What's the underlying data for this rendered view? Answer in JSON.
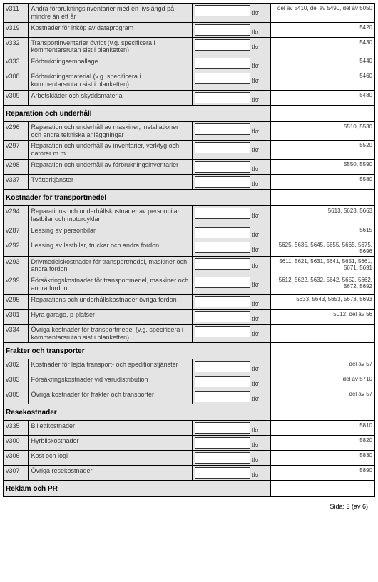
{
  "unit": "tkr",
  "sections": [
    {
      "id": "top",
      "heading": null,
      "rows": [
        {
          "name": "row-v311",
          "code": "v311",
          "label": "Andra förbrukningsinventarier med en livslängd på mindre än ett år",
          "note": "del av 5410, del av 5490, del av 5050",
          "value": ""
        },
        {
          "name": "row-v319",
          "code": "v319",
          "label": "Kostnader för inköp av dataprogram",
          "note": "5420",
          "value": ""
        },
        {
          "name": "row-v332",
          "code": "v332",
          "label": "Transportinventarier övrigt (v.g. specificera i kommentarsrutan sist i blanketten)",
          "note": "5430",
          "value": ""
        },
        {
          "name": "row-v333",
          "code": "v333",
          "label": "Förbrukningsemballage",
          "note": "5440",
          "value": ""
        },
        {
          "name": "row-v308",
          "code": "v308",
          "label": "Förbrukningsmaterial (v.g. specificera i kommentarsrutan sist i blanketten)",
          "note": "5460",
          "value": ""
        },
        {
          "name": "row-v309",
          "code": "v309",
          "label": "Arbetskläder och skyddsmaterial",
          "note": "5480",
          "value": ""
        }
      ]
    },
    {
      "id": "reparation",
      "heading": "Reparation och underhåll",
      "rows": [
        {
          "name": "row-v296",
          "code": "v296",
          "label": "Reparation och underhåll av maskiner, installationer och andra tekniska anläggningar",
          "note": "5510, 5530",
          "value": ""
        },
        {
          "name": "row-v297",
          "code": "v297",
          "label": "Reparation och underhåll av inventarier, verktyg och datorer m.m.",
          "note": "5520",
          "value": ""
        },
        {
          "name": "row-v298",
          "code": "v298",
          "label": "Reparation och underhåll av förbrukningsinventarier",
          "note": "5550, 5590",
          "value": ""
        },
        {
          "name": "row-v337",
          "code": "v337",
          "label": "Tvätteritjänster",
          "note": "5580",
          "value": ""
        }
      ]
    },
    {
      "id": "transportmedel",
      "heading": "Kostnader för transportmedel",
      "rows": [
        {
          "name": "row-v294",
          "code": "v294",
          "label": "Reparations och underhållskostnader av personbilar, lastbilar och motorcyklar",
          "note": "5613, 5623, 5663",
          "value": ""
        },
        {
          "name": "row-v287",
          "code": "v287",
          "label": "Leasing av personbilar",
          "note": "5615",
          "value": ""
        },
        {
          "name": "row-v292",
          "code": "v292",
          "label": "Leasing av lastbilar, truckar och andra fordon",
          "note": "5625, 5635, 5645, 5655, 5665, 5675, 5696",
          "value": ""
        },
        {
          "name": "row-v293",
          "code": "v293",
          "label": "Drivmedelskostnader för transportmedel, maskiner och andra fordon",
          "note": "5611, 5621, 5631, 5641, 5651, 5661, 5671, 5691",
          "value": ""
        },
        {
          "name": "row-v299",
          "code": "v299",
          "label": "Försäkringskostnader för transportmedel, maskiner och andra fordon",
          "note": "5612, 5622, 5632, 5642, 5652, 5662, 5672, 5692",
          "value": ""
        },
        {
          "name": "row-v295",
          "code": "v295",
          "label": "Reparations och underhållskostnader övriga fordon",
          "note": "5633, 5643, 5653, 5673, 5693",
          "value": ""
        },
        {
          "name": "row-v301",
          "code": "v301",
          "label": "Hyra garage, p-platser",
          "note": "5012, del av 56",
          "value": ""
        },
        {
          "name": "row-v334",
          "code": "v334",
          "label": "Övriga kostnader för transportmedel (v.g. specificera i kommentarsrutan sist i blanketten)",
          "note": "",
          "value": ""
        }
      ]
    },
    {
      "id": "frakter",
      "heading": "Frakter och transporter",
      "rows": [
        {
          "name": "row-v302",
          "code": "v302",
          "label": "Kostnader för lejda transport- och speditionstjänster",
          "note": "del av 57",
          "value": ""
        },
        {
          "name": "row-v303",
          "code": "v303",
          "label": "Försäkringskostnader vid varudistribution",
          "note": "del av 5710",
          "value": ""
        },
        {
          "name": "row-v305",
          "code": "v305",
          "label": "Övriga kostnader för frakter och transporter",
          "note": "del av 57",
          "value": ""
        }
      ]
    },
    {
      "id": "resekostnader",
      "heading": "Resekostnader",
      "rows": [
        {
          "name": "row-v335",
          "code": "v335",
          "label": "Biljettkostnader",
          "note": "5810",
          "value": ""
        },
        {
          "name": "row-v300",
          "code": "v300",
          "label": "Hyrbilskostnader",
          "note": "5820",
          "value": ""
        },
        {
          "name": "row-v306",
          "code": "v306",
          "label": "Kost och logi",
          "note": "5830",
          "value": ""
        },
        {
          "name": "row-v307",
          "code": "v307",
          "label": "Övriga resekostnader",
          "note": "5890",
          "value": ""
        }
      ]
    },
    {
      "id": "reklam",
      "heading": "Reklam och PR",
      "rows": []
    }
  ],
  "footer": {
    "page_label": "Sida: 3 (av 6)"
  }
}
